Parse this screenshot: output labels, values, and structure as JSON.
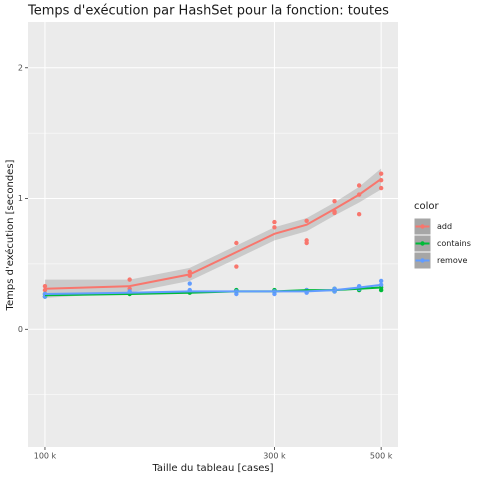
{
  "chart_data": {
    "type": "scatter",
    "title": "Temps d'exécution par HashSet pour la fonction: toutes",
    "x_label": "Taille du tableau [cases]",
    "y_label": "Temps d'exécution [secondes]",
    "x_log": true,
    "xlim": [
      92200,
      542000
    ],
    "ylim": [
      -0.9,
      2.35
    ],
    "xticks": [
      {
        "value": 100000,
        "label": "100 k"
      },
      {
        "value": 300000,
        "label": "300 k"
      },
      {
        "value": 500000,
        "label": "500 k"
      }
    ],
    "yticks": [
      0,
      1,
      2
    ],
    "y_minor_ticks": [
      -0.5,
      0.5,
      1.5
    ],
    "grid": true,
    "legend_title": "color",
    "legend_position": "right",
    "smooth_x": [
      100000,
      150000,
      200000,
      250000,
      300000,
      350000,
      400000,
      450000,
      500000
    ],
    "series": [
      {
        "name": "add",
        "color": "#f8766d",
        "x": [
          100000,
          100000,
          150000,
          150000,
          200000,
          200000,
          250000,
          250000,
          300000,
          300000,
          350000,
          350000,
          350000,
          400000,
          400000,
          400000,
          450000,
          450000,
          450000,
          500000,
          500000,
          500000
        ],
        "values": [
          0.33,
          0.3,
          0.38,
          0.31,
          0.44,
          0.41,
          0.66,
          0.48,
          0.82,
          0.78,
          0.83,
          0.68,
          0.66,
          0.98,
          0.9,
          0.89,
          1.1,
          1.03,
          0.88,
          1.19,
          1.14,
          1.08
        ],
        "smooth": [
          0.31,
          0.33,
          0.42,
          0.59,
          0.73,
          0.8,
          0.92,
          1.03,
          1.15
        ],
        "smooth_lower": [
          0.24,
          0.28,
          0.37,
          0.54,
          0.68,
          0.75,
          0.87,
          0.97,
          1.07
        ],
        "smooth_upper": [
          0.38,
          0.38,
          0.47,
          0.64,
          0.78,
          0.85,
          0.97,
          1.09,
          1.23
        ]
      },
      {
        "name": "contains",
        "color": "#00ba38",
        "x": [
          100000,
          100000,
          150000,
          150000,
          200000,
          200000,
          250000,
          250000,
          300000,
          300000,
          350000,
          350000,
          400000,
          400000,
          450000,
          450000,
          500000,
          500000
        ],
        "values": [
          0.25,
          0.27,
          0.27,
          0.28,
          0.28,
          0.29,
          0.29,
          0.3,
          0.29,
          0.3,
          0.29,
          0.3,
          0.29,
          0.31,
          0.3,
          0.32,
          0.3,
          0.32
        ],
        "smooth": [
          0.26,
          0.27,
          0.28,
          0.29,
          0.29,
          0.3,
          0.3,
          0.31,
          0.32
        ]
      },
      {
        "name": "remove",
        "color": "#619cff",
        "x": [
          100000,
          100000,
          150000,
          150000,
          200000,
          200000,
          250000,
          250000,
          300000,
          300000,
          350000,
          350000,
          400000,
          400000,
          450000,
          450000,
          500000,
          500000
        ],
        "values": [
          0.25,
          0.27,
          0.28,
          0.29,
          0.35,
          0.3,
          0.27,
          0.29,
          0.27,
          0.29,
          0.28,
          0.3,
          0.29,
          0.31,
          0.31,
          0.33,
          0.34,
          0.37
        ],
        "smooth": [
          0.27,
          0.28,
          0.29,
          0.29,
          0.29,
          0.29,
          0.3,
          0.32,
          0.34
        ]
      }
    ]
  }
}
